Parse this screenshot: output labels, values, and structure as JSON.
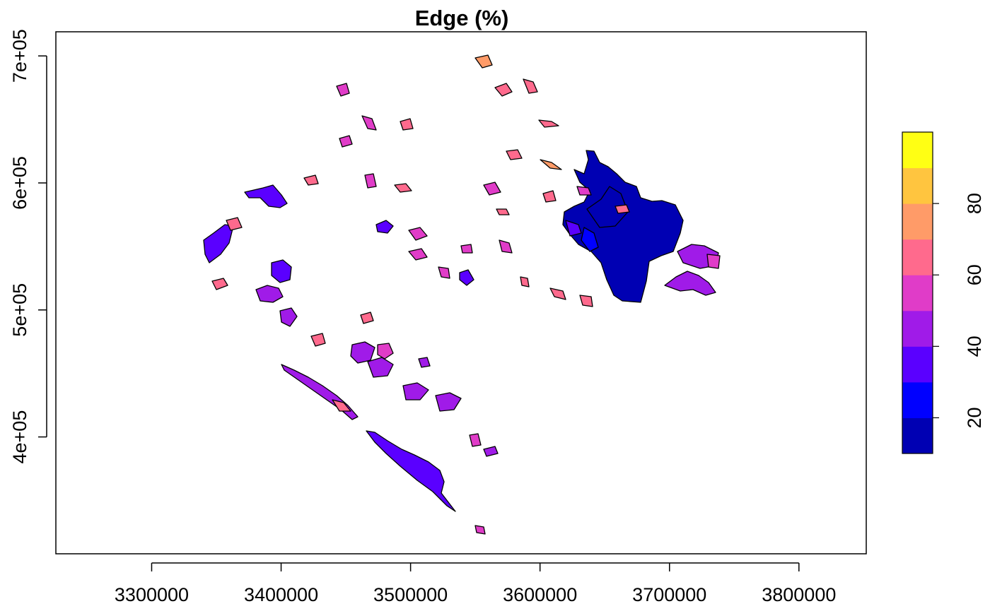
{
  "title": "Edge (%)",
  "map": {
    "x_ticks": [
      {
        "value": 3300000,
        "label": "3300000"
      },
      {
        "value": 3400000,
        "label": "3400000"
      },
      {
        "value": 3500000,
        "label": "3500000"
      },
      {
        "value": 3600000,
        "label": "3600000"
      },
      {
        "value": 3700000,
        "label": "3700000"
      },
      {
        "value": 3800000,
        "label": "3800000"
      }
    ],
    "y_ticks": [
      {
        "value": 400000,
        "label": "4e+05"
      },
      {
        "value": 500000,
        "label": "5e+05"
      },
      {
        "value": 600000,
        "label": "6e+05"
      },
      {
        "value": 700000,
        "label": "7e+05"
      }
    ],
    "xlim": [
      3226000,
      3852000
    ],
    "ylim": [
      308000,
      719000
    ]
  },
  "legend": {
    "colors": [
      "#0000B3",
      "#0000FF",
      "#5A00FF",
      "#A01BE8",
      "#E03CC8",
      "#FF6A8D",
      "#FF9B68",
      "#FFC53F",
      "#FFFF14"
    ],
    "ticks": [
      {
        "value": 20,
        "label": "20"
      },
      {
        "value": 40,
        "label": "40"
      },
      {
        "value": 60,
        "label": "60"
      },
      {
        "value": 80,
        "label": "80"
      }
    ],
    "range": [
      10,
      100
    ]
  }
}
